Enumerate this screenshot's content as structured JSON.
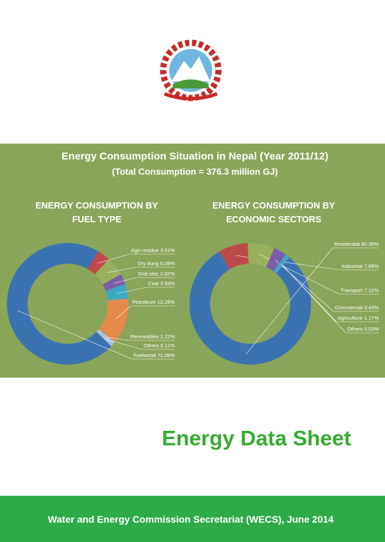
{
  "banner": {
    "title": "Energy Consumption Situation in Nepal (Year 2011/12)",
    "subtitle": "(Total Consumption = 376.3 million GJ)"
  },
  "chart_data": [
    {
      "type": "pie",
      "title": "ENERGY CONSUMPTION BY\nFUEL TYPE",
      "categories": [
        "Agri residue",
        "Dry dung",
        "Grid elec",
        "Coal",
        "Petroleum",
        "Renewables",
        "Others",
        "Fuelwood"
      ],
      "values": [
        3.51,
        5.08,
        2.82,
        3.93,
        12.28,
        1.22,
        0.11,
        71.06
      ],
      "value_labels": [
        "3.51%",
        "5.08%",
        "2.82%",
        "3.93%",
        "12.28%",
        "1.22%",
        "0.11%",
        "71.06%"
      ],
      "colors": [
        "#bd4c48",
        "#97b15f",
        "#7a5ea6",
        "#3ea8c4",
        "#e58a4b",
        "#a9c3e3",
        "#d5deec",
        "#3b73b2"
      ]
    },
    {
      "type": "pie",
      "title": "ENERGY CONSUMPTION BY\nECONOMIC SECTORS",
      "categories": [
        "Residential",
        "Industrial",
        "Transport",
        "Commercial",
        "Agriculture",
        "Others"
      ],
      "values": [
        80.36,
        7.89,
        7.12,
        3.43,
        1.17,
        0.03
      ],
      "value_labels": [
        "80.36%",
        "7.89%",
        "7.12%",
        "3.43%",
        "1.17%",
        "0.03%"
      ],
      "colors": [
        "#3b73b2",
        "#bd4c48",
        "#97b15f",
        "#7a5ea6",
        "#3ea8c4",
        "#d5deec"
      ]
    }
  ],
  "document_title": "Energy Data Sheet",
  "footer": "Water and Energy Commission Secretariat (WECS), June 2014"
}
